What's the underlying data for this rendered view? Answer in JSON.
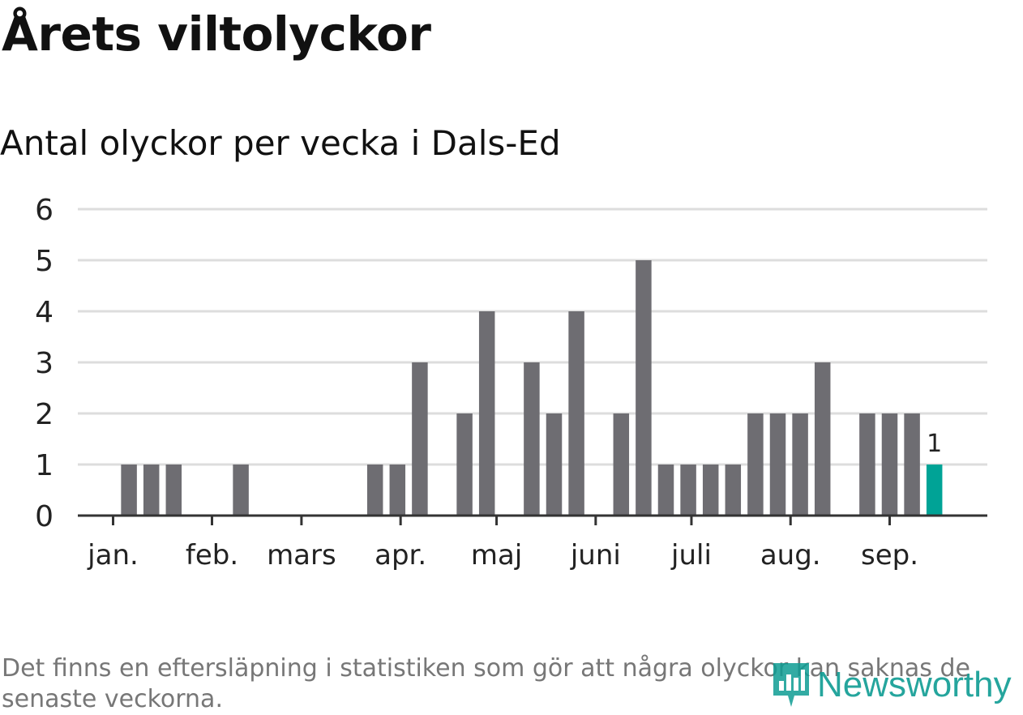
{
  "header": {
    "title": "Årets viltolyckor",
    "subtitle": "Antal olyckor per vecka i Dals-Ed"
  },
  "footer": {
    "note": "Det finns en eftersläpning i statistiken som gör att några olyckor kan saknas de senaste veckorna.",
    "logo_text": "Newsworthy"
  },
  "colors": {
    "bar": "#6e6d72",
    "highlight": "#00a396",
    "grid": "#dddddd",
    "axis": "#333333",
    "logo": "#0e9c93"
  },
  "chart_data": {
    "type": "bar",
    "x": [
      1,
      2,
      3,
      4,
      5,
      6,
      7,
      8,
      9,
      10,
      11,
      12,
      13,
      14,
      15,
      16,
      17,
      18,
      19,
      20,
      21,
      22,
      23,
      24,
      25,
      26,
      27,
      28,
      29,
      30,
      31,
      32,
      33,
      34,
      35,
      36,
      37,
      38,
      39
    ],
    "values": [
      0,
      1,
      1,
      1,
      0,
      0,
      1,
      0,
      0,
      0,
      0,
      0,
      1,
      1,
      3,
      0,
      2,
      4,
      0,
      3,
      2,
      4,
      0,
      2,
      5,
      1,
      1,
      1,
      1,
      2,
      2,
      2,
      3,
      0,
      2,
      2,
      2,
      1,
      null
    ],
    "highlight_index": 37,
    "data_labels": [
      {
        "index": 37,
        "text": "1"
      }
    ],
    "ylim": [
      0,
      6
    ],
    "yticks": [
      0,
      1,
      2,
      3,
      4,
      5,
      6
    ],
    "month_ticks": [
      {
        "label": "jan.",
        "week": 1.29
      },
      {
        "label": "feb.",
        "week": 5.71
      },
      {
        "label": "mars",
        "week": 9.71
      },
      {
        "label": "apr.",
        "week": 14.14
      },
      {
        "label": "maj",
        "week": 18.43
      },
      {
        "label": "juni",
        "week": 22.86
      },
      {
        "label": "juli",
        "week": 27.14
      },
      {
        "label": "aug.",
        "week": 31.57
      },
      {
        "label": "sep.",
        "week": 36.0
      }
    ],
    "grid": true,
    "legend": "none"
  }
}
